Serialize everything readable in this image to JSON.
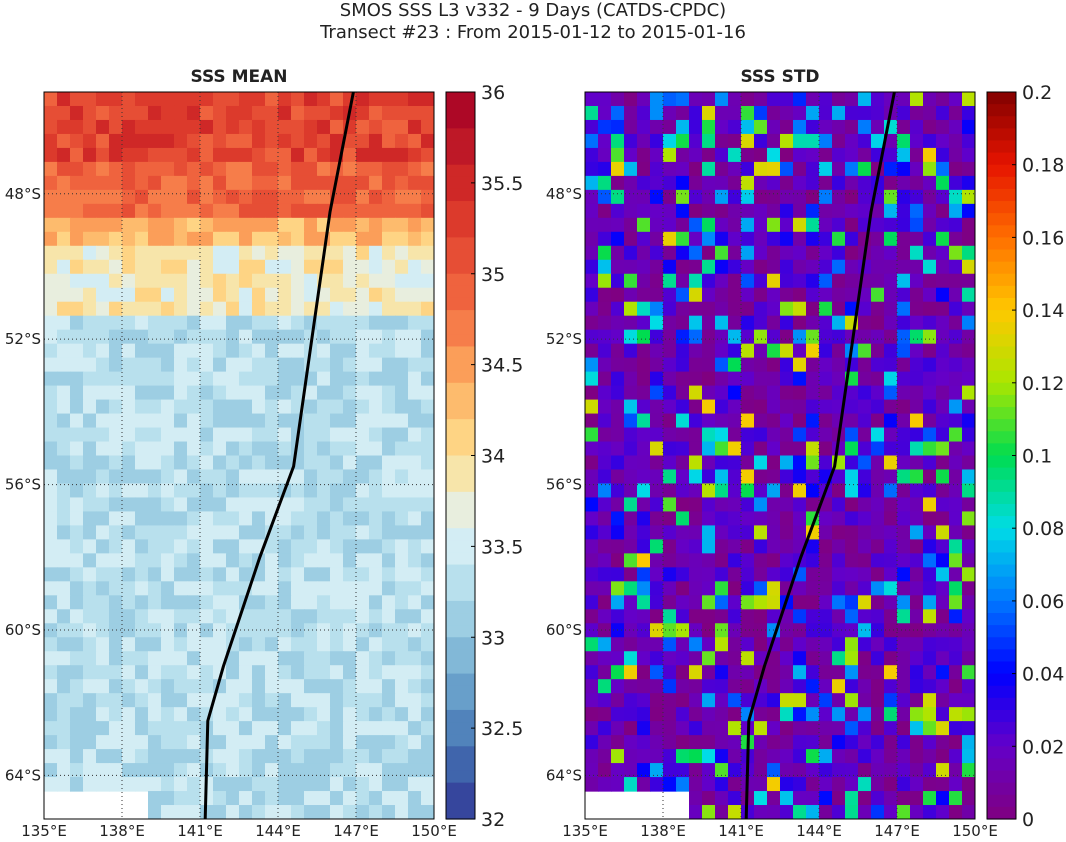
{
  "figure": {
    "title_line1": "SMOS SSS L3 v332 - 9 Days (CATDS-CPDC)",
    "title_line2": "Transect #23 : From 2015-01-12 to 2015-01-16"
  },
  "chart_data": [
    {
      "type": "heatmap",
      "title": "SSS MEAN",
      "xlabel": "",
      "ylabel": "",
      "x_ticks": [
        "135°E",
        "138°E",
        "141°E",
        "144°E",
        "147°E",
        "150°E"
      ],
      "x_tick_values": [
        135,
        138,
        141,
        144,
        147,
        150
      ],
      "y_ticks": [
        "48°S",
        "52°S",
        "56°S",
        "60°S",
        "64°S"
      ],
      "y_tick_values": [
        -48,
        -52,
        -56,
        -60,
        -64
      ],
      "lon_range": [
        135,
        150
      ],
      "lat_range": [
        -65.2,
        -45.2
      ],
      "grid": "dotted",
      "colorbar": {
        "range": [
          32,
          36
        ],
        "ticks": [
          "32",
          "32.5",
          "33",
          "33.5",
          "34",
          "34.5",
          "35",
          "35.5",
          "36"
        ],
        "tick_values": [
          32,
          32.5,
          33,
          33.5,
          34,
          34.5,
          35,
          35.5,
          36
        ],
        "colormap": "RdYlBu_r",
        "levels": 20
      },
      "field_approx": [
        {
          "lat_from": -45.2,
          "lat_to": -47.0,
          "sss": 35.2
        },
        {
          "lat_from": -47.0,
          "lat_to": -48.5,
          "sss": 34.9
        },
        {
          "lat_from": -48.5,
          "lat_to": -49.5,
          "sss": 34.3
        },
        {
          "lat_from": -49.5,
          "lat_to": -51.5,
          "sss": 33.8
        },
        {
          "lat_from": -51.5,
          "lat_to": -64.5,
          "sss": 33.3
        }
      ],
      "transect_line": {
        "lon": [
          141.2,
          141.3,
          141.9,
          143.3,
          144.6,
          146.0,
          146.9
        ],
        "lat": [
          -65.2,
          -62.5,
          -61.0,
          -58.0,
          -55.5,
          -48.5,
          -45.2
        ],
        "color": "#000000"
      }
    },
    {
      "type": "heatmap",
      "title": "SSS STD",
      "xlabel": "",
      "ylabel": "",
      "x_ticks": [
        "135°E",
        "138°E",
        "141°E",
        "144°E",
        "147°E",
        "150°E"
      ],
      "x_tick_values": [
        135,
        138,
        141,
        144,
        147,
        150
      ],
      "y_ticks": [
        "48°S",
        "52°S",
        "56°S",
        "60°S",
        "64°S"
      ],
      "y_tick_values": [
        -48,
        -52,
        -56,
        -60,
        -64
      ],
      "lon_range": [
        135,
        150
      ],
      "lat_range": [
        -65.2,
        -45.2
      ],
      "grid": "dotted",
      "colorbar": {
        "range": [
          0,
          0.2
        ],
        "ticks": [
          "0",
          "0.02",
          "0.04",
          "0.06",
          "0.08",
          "0.1",
          "0.12",
          "0.14",
          "0.16",
          "0.18",
          "0.2"
        ],
        "tick_values": [
          0,
          0.02,
          0.04,
          0.06,
          0.08,
          0.1,
          0.12,
          0.14,
          0.16,
          0.18,
          0.2
        ],
        "colormap": "jet-like"
      },
      "field_approx": [
        {
          "lat_from": -45.2,
          "lat_to": -65.2,
          "std_typical": 0.03,
          "std_max": 0.14
        }
      ],
      "transect_line": {
        "lon": [
          141.2,
          141.3,
          141.9,
          143.3,
          144.6,
          146.0,
          146.9
        ],
        "lat": [
          -65.2,
          -62.5,
          -61.0,
          -58.0,
          -55.5,
          -48.5,
          -45.2
        ],
        "color": "#000000"
      }
    }
  ]
}
